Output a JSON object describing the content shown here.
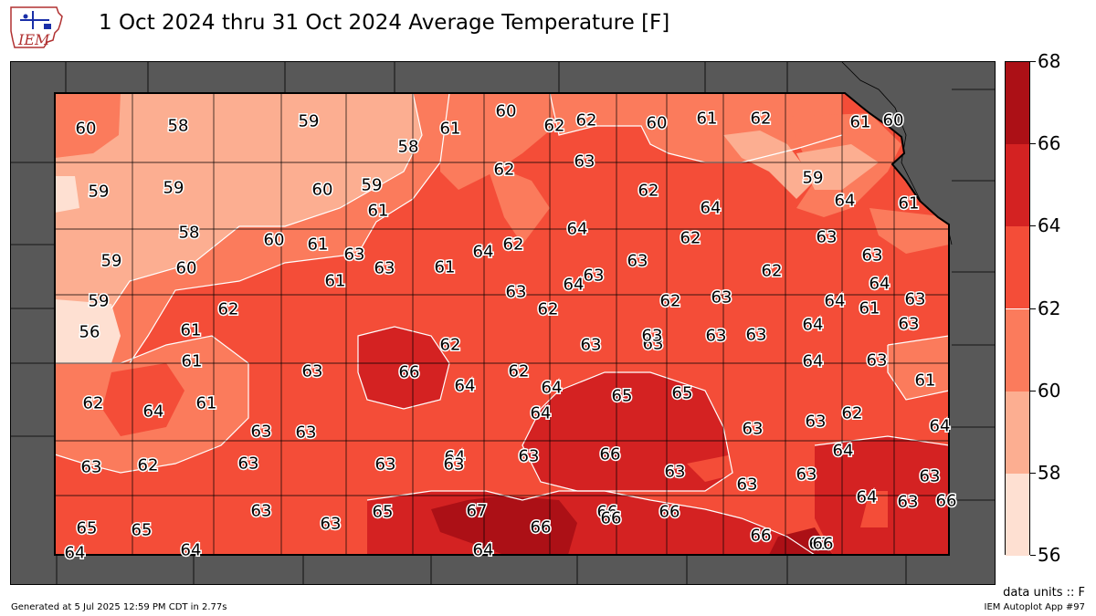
{
  "title": "1 Oct 2024 thru 31 Oct 2024 Average Temperature [F]",
  "logo": {
    "text": "IEM",
    "icon": "iowa-state-outline-logo"
  },
  "units_label": "data units :: F",
  "footer_left": "Generated at 5 Jul 2025 12:59 PM CDT in 2.77s",
  "footer_right": "IEM Autoplot App #97",
  "colorbar": {
    "levels": [
      56,
      58,
      60,
      62,
      64,
      66,
      68
    ],
    "tick_labels": [
      "56",
      "58",
      "60",
      "62",
      "64",
      "66",
      "68"
    ],
    "colors": [
      "#fee0d2",
      "#fcae91",
      "#fb7b5c",
      "#f44d38",
      "#d42222",
      "#ac1016"
    ]
  },
  "colors": {
    "background_outside": "#585858",
    "county_line": "#000000",
    "contour_line": "#ffffff"
  },
  "station_values": [
    "60",
    "58",
    "59",
    "58",
    "61",
    "60",
    "62",
    "62",
    "60",
    "61",
    "62",
    "61",
    "60",
    "59",
    "59",
    "60",
    "59",
    "62",
    "63",
    "62",
    "59",
    "64",
    "61",
    "61",
    "64",
    "62",
    "63",
    "58",
    "60",
    "61",
    "63",
    "63",
    "61",
    "64",
    "64",
    "63",
    "62",
    "59",
    "60",
    "61",
    "62",
    "63",
    "63",
    "64",
    "63",
    "63",
    "62",
    "64",
    "61",
    "63",
    "63",
    "59",
    "62",
    "61",
    "62",
    "64",
    "63",
    "63",
    "56",
    "61",
    "63",
    "62",
    "66",
    "63",
    "63",
    "63",
    "64",
    "64",
    "63",
    "62",
    "64",
    "61",
    "62",
    "64",
    "64",
    "65",
    "63",
    "64",
    "63",
    "61",
    "63",
    "63",
    "63",
    "64",
    "63",
    "65",
    "63",
    "62",
    "64",
    "63",
    "62",
    "63",
    "63",
    "63",
    "63",
    "66",
    "64",
    "63",
    "63",
    "66",
    "66",
    "63",
    "63",
    "64",
    "62",
    "65",
    "67",
    "66",
    "66",
    "66",
    "66",
    "65",
    "65",
    "64",
    "64",
    "64",
    "66",
    "66",
    "65"
  ]
}
